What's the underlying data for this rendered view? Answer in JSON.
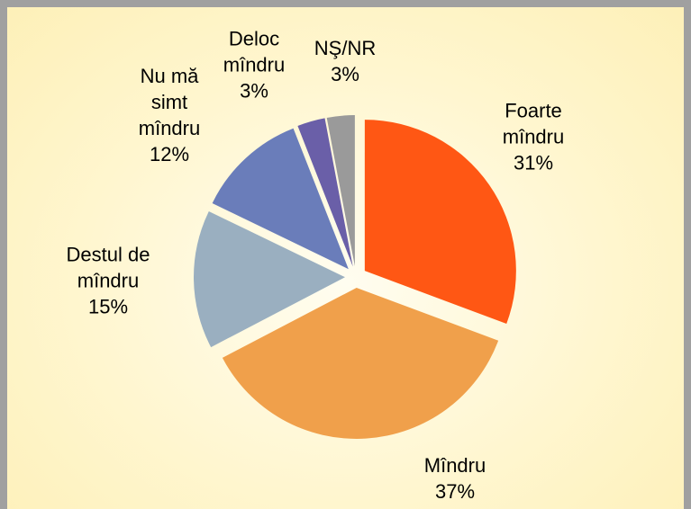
{
  "chart_data": {
    "type": "pie",
    "categories": [
      "Foarte mîndru",
      "Mîndru",
      "Destul de mîndru",
      "Nu mă simt mîndru",
      "Deloc mîndru",
      "NŞ/NR"
    ],
    "values": [
      31,
      37,
      15,
      12,
      3,
      3
    ],
    "value_labels": [
      "31%",
      "37%",
      "15%",
      "12%",
      "3%",
      "3%"
    ],
    "colors": [
      "#ff5714",
      "#f0a04b",
      "#9aafc0",
      "#6a7dba",
      "#6a5fa8",
      "#9a9a9a"
    ]
  }
}
